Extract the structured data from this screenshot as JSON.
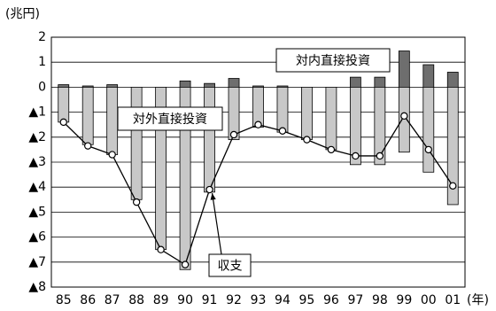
{
  "chart_data": {
    "type": "bar_line",
    "y_axis_label": "(兆円)",
    "x_axis_label": "(年)",
    "categories": [
      "85",
      "86",
      "87",
      "88",
      "89",
      "90",
      "91",
      "92",
      "93",
      "94",
      "95",
      "96",
      "97",
      "98",
      "99",
      "00",
      "01"
    ],
    "series": [
      {
        "name": "対内直接投資",
        "kind": "bar",
        "color": "#6e6e6e",
        "values": [
          0.1,
          0.05,
          0.1,
          0.0,
          0.0,
          0.25,
          0.15,
          0.35,
          0.05,
          0.05,
          0.0,
          0.0,
          0.4,
          0.4,
          1.45,
          0.9,
          0.6
        ]
      },
      {
        "name": "対外直接投資",
        "kind": "bar",
        "color": "#c8c8c8",
        "values": [
          -1.4,
          -2.3,
          -2.7,
          -4.5,
          -6.5,
          -7.3,
          -4.2,
          -2.1,
          -1.6,
          -1.8,
          -2.1,
          -2.5,
          -3.1,
          -3.1,
          -2.6,
          -3.4,
          -4.7
        ]
      },
      {
        "name": "収支",
        "kind": "line",
        "color": "#000000",
        "values": [
          -1.4,
          -2.35,
          -2.7,
          -4.6,
          -6.5,
          -7.1,
          -4.1,
          -1.9,
          -1.5,
          -1.75,
          -2.1,
          -2.5,
          -2.75,
          -2.75,
          -1.15,
          -2.5,
          -3.95
        ]
      }
    ],
    "ylim": [
      -8,
      2
    ],
    "yticks": [
      2,
      1,
      0,
      {
        "value": -1,
        "label": "▲1"
      },
      {
        "value": -2,
        "label": "▲2"
      },
      {
        "value": -3,
        "label": "▲3"
      },
      {
        "value": -4,
        "label": "▲4"
      },
      {
        "value": -5,
        "label": "▲5"
      },
      {
        "value": -6,
        "label": "▲6"
      },
      {
        "value": -7,
        "label": "▲7"
      },
      {
        "value": -8,
        "label": "▲8"
      }
    ],
    "grid": true
  }
}
